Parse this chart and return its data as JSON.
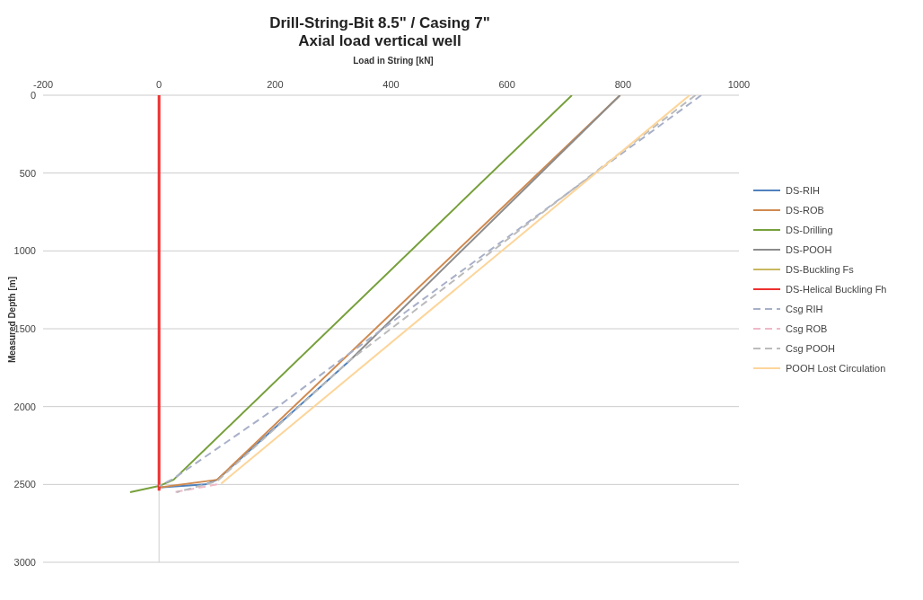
{
  "chart_data": {
    "type": "line",
    "title": "Drill-String-Bit 8.5\" / Casing 7\"",
    "subtitle": "Axial load vertical well",
    "xlabel": "Load in String  [kN]",
    "ylabel": "Measured Depth [m]",
    "xlim": [
      -200,
      1000
    ],
    "xticks": [
      -200,
      0,
      200,
      400,
      600,
      800,
      1000
    ],
    "ylim": [
      3000,
      0
    ],
    "yticks": [
      0,
      500,
      1000,
      1500,
      2000,
      2500,
      3000
    ],
    "grid": "y",
    "legend": "right",
    "marker": "none",
    "series": [
      {
        "name": "DS-RIH",
        "color": "#4f81bd",
        "line_style": "solid",
        "x": [
          330,
          100,
          80,
          0
        ],
        "values": [
          1700,
          2470,
          2500,
          2520
        ]
      },
      {
        "name": "DS-ROB",
        "color": "#d08a50",
        "line_style": "solid",
        "x": [
          795,
          100,
          0
        ],
        "values": [
          0,
          2470,
          2520
        ]
      },
      {
        "name": "DS-Drilling",
        "color": "#77a03c",
        "line_style": "solid",
        "x": [
          712,
          25,
          0,
          -50
        ],
        "values": [
          0,
          2470,
          2510,
          2550
        ]
      },
      {
        "name": "DS-POOH",
        "color": "#8c8c8c",
        "line_style": "solid",
        "x": [
          795,
          330
        ],
        "values": [
          0,
          1700
        ]
      },
      {
        "name": "DS-Buckling Fs",
        "color": "#c8b860",
        "line_style": "solid"
      },
      {
        "name": "DS-Helical Buckling Fh",
        "color": "#ee3030",
        "line_style": "solid",
        "x": [
          0,
          0
        ],
        "values": [
          0,
          2540
        ]
      },
      {
        "name": "Csg RIH",
        "color": "#a8b0c8",
        "line_style": "dashed",
        "x": [
          935,
          386,
          205,
          24,
          0
        ],
        "values": [
          0,
          1500,
          2000,
          2465,
          2510
        ]
      },
      {
        "name": "Csg ROB",
        "color": "#f0b8c8",
        "line_style": "dashed",
        "x": [
          100,
          26
        ],
        "values": [
          2500,
          2550
        ]
      },
      {
        "name": "Csg POOH",
        "color": "#bbbbbb",
        "line_style": "dashed",
        "x": [
          925,
          330,
          100,
          30
        ],
        "values": [
          0,
          1700,
          2480,
          2550
        ]
      },
      {
        "name": "POOH Lost Circulation",
        "color": "#fcd59a",
        "line_style": "solid",
        "x": [
          915,
          107
        ],
        "values": [
          0,
          2495
        ]
      }
    ]
  }
}
